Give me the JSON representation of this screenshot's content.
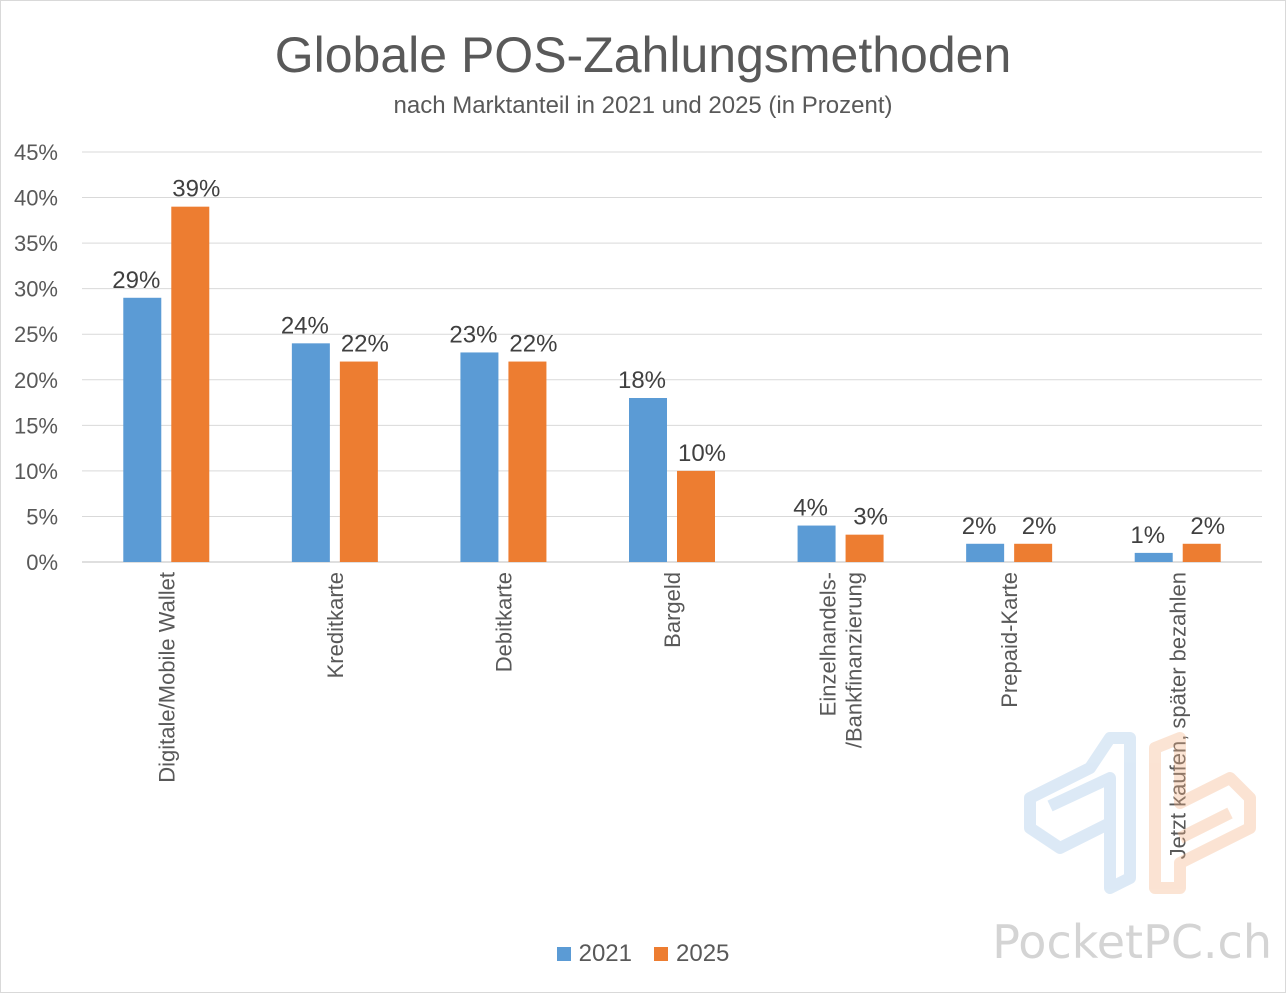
{
  "chart_data": {
    "type": "bar",
    "title": "Globale POS-Zahlungsmethoden",
    "subtitle": "nach Marktanteil in 2021 und 2025 (in Prozent)",
    "categories": [
      "Digitale/Mobile Wallet",
      "Kreditkarte",
      "Debitkarte",
      "Bargeld",
      "Einzelhandels-\n/Bankfinanzierung",
      "Prepaid-Karte",
      "Jetzt kaufen, später bezahlen"
    ],
    "series": [
      {
        "name": "2021",
        "color": "#5b9bd5",
        "values": [
          29,
          24,
          23,
          18,
          4,
          2,
          1
        ],
        "labels": [
          "29%",
          "24%",
          "23%",
          "18%",
          "4%",
          "2%",
          "1%"
        ]
      },
      {
        "name": "2025",
        "color": "#ed7d31",
        "values": [
          39,
          22,
          22,
          10,
          3,
          2,
          2
        ],
        "labels": [
          "39%",
          "22%",
          "22%",
          "10%",
          "3%",
          "2%",
          "2%"
        ]
      }
    ],
    "ylim": [
      0,
      45
    ],
    "yticks": [
      0,
      5,
      10,
      15,
      20,
      25,
      30,
      35,
      40,
      45
    ],
    "ytick_labels": [
      "0%",
      "5%",
      "10%",
      "15%",
      "20%",
      "25%",
      "30%",
      "35%",
      "40%",
      "45%"
    ],
    "grid": true,
    "legend": "bottom"
  },
  "watermark": "PocketPC.ch"
}
